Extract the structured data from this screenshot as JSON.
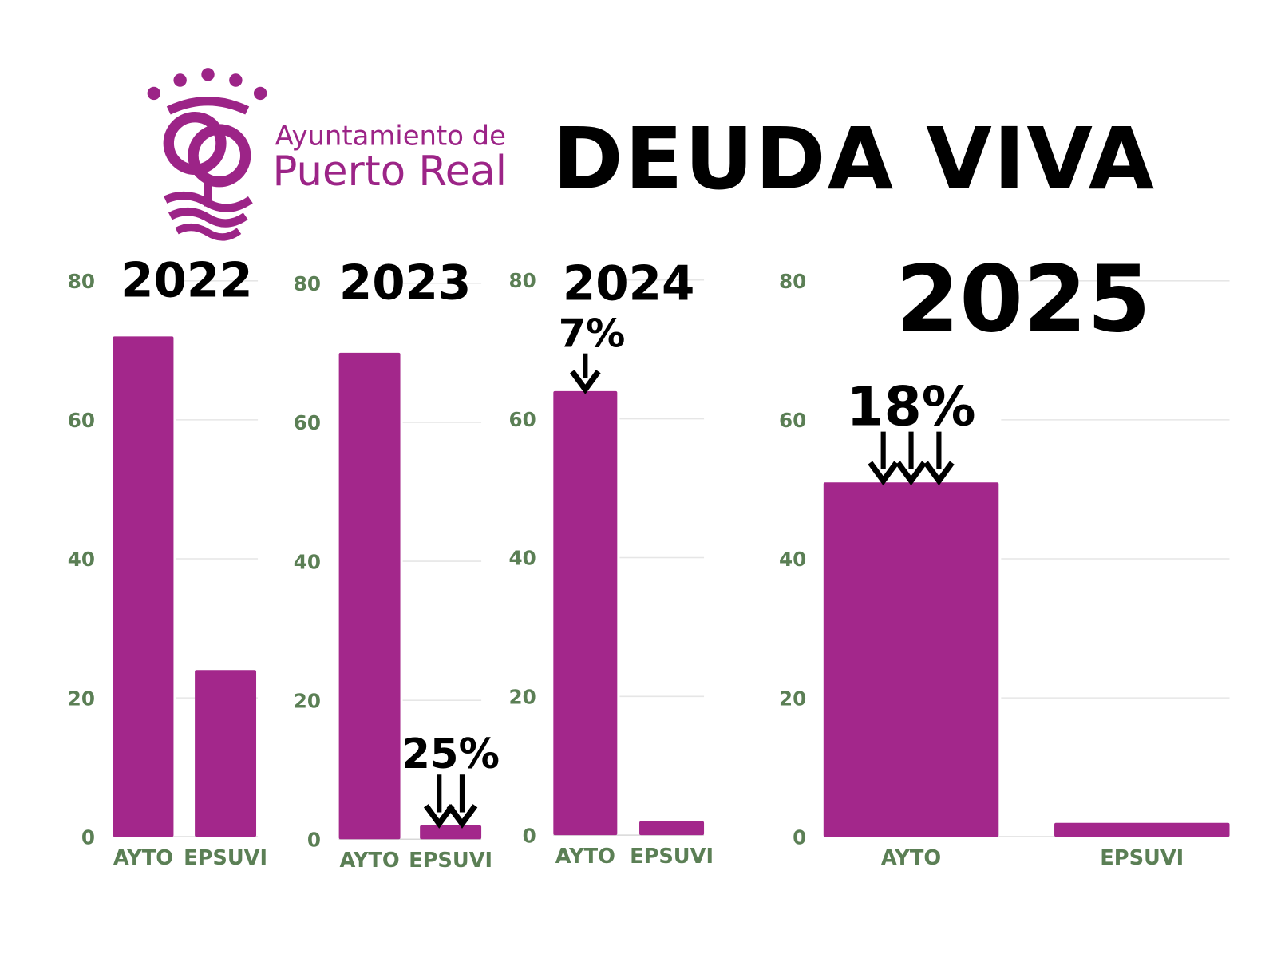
{
  "header": {
    "logo_line1": "Ayuntamiento de",
    "logo_line2": "Puerto Real",
    "title": "DEUDA VIVA"
  },
  "colors": {
    "bar": "#a3278b",
    "axis_text": "#5b7f55",
    "grid": "#e6e6e6",
    "logo": "#9c2487"
  },
  "chart_data": [
    {
      "type": "bar",
      "title": "2022",
      "categories": [
        "AYTO",
        "EPSUVI"
      ],
      "values": [
        72,
        24
      ],
      "ylim": [
        0,
        80
      ],
      "yticks": [
        "0",
        "20",
        "40",
        "60",
        "80"
      ],
      "grid": true,
      "annotations": []
    },
    {
      "type": "bar",
      "title": "2023",
      "categories": [
        "AYTO",
        "EPSUVI"
      ],
      "values": [
        70,
        2
      ],
      "ylim": [
        0,
        80
      ],
      "yticks": [
        "0",
        "20",
        "40",
        "60",
        "80"
      ],
      "grid": true,
      "annotations": [
        {
          "text": "25%",
          "target": "EPSUVI",
          "arrows": 2
        }
      ]
    },
    {
      "type": "bar",
      "title": "2024",
      "categories": [
        "AYTO",
        "EPSUVI"
      ],
      "values": [
        64,
        2
      ],
      "ylim": [
        0,
        80
      ],
      "yticks": [
        "0",
        "20",
        "40",
        "60",
        "80"
      ],
      "grid": true,
      "annotations": [
        {
          "text": "7%",
          "target": "AYTO",
          "arrows": 1
        }
      ]
    },
    {
      "type": "bar",
      "title": "2025",
      "categories": [
        "AYTO",
        "EPSUVI"
      ],
      "values": [
        51,
        2
      ],
      "ylim": [
        0,
        80
      ],
      "yticks": [
        "0",
        "20",
        "40",
        "60",
        "80"
      ],
      "grid": true,
      "annotations": [
        {
          "text": "18%",
          "target": "AYTO",
          "arrows": 3
        }
      ]
    }
  ]
}
